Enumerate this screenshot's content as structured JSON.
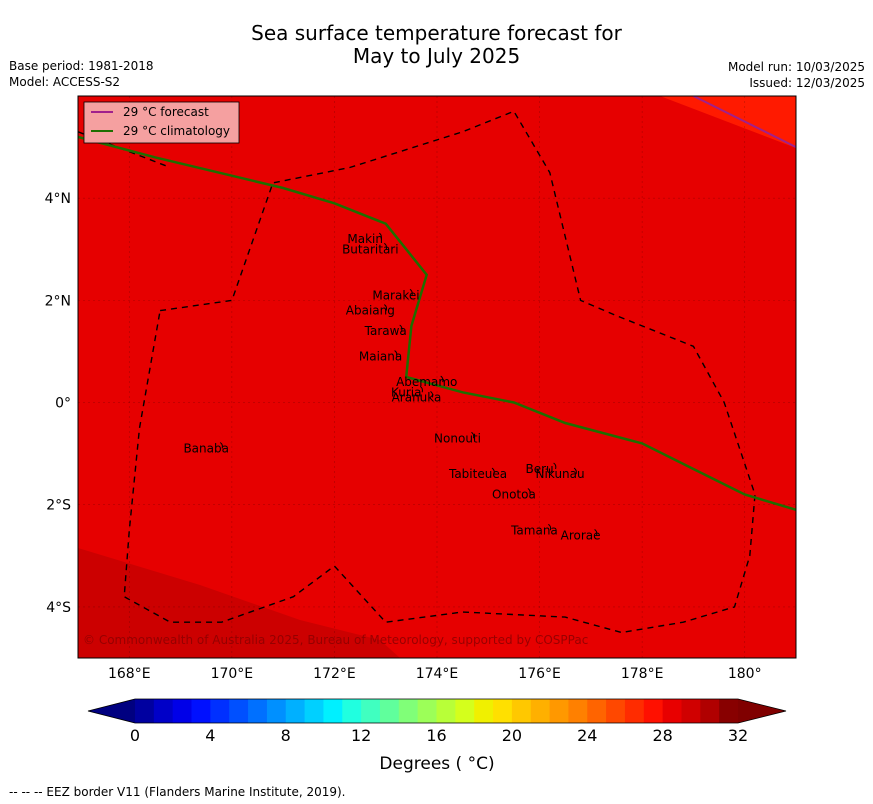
{
  "title_line1": "Sea surface temperature forecast for",
  "title_line2": "May to July 2025",
  "base_period": "Base period: 1981-2018",
  "model": "Model: ACCESS-S2",
  "model_run": "Model run: 10/03/2025",
  "issued": "Issued: 12/03/2025",
  "legend": {
    "forecast_label": "29 °C  forecast",
    "climatology_label": "29 °C  climatology",
    "forecast_color": "#a0208c",
    "climatology_color": "#1e6e00"
  },
  "lon_ticks": [
    "168°E",
    "170°E",
    "172°E",
    "174°E",
    "176°E",
    "178°E",
    "180°"
  ],
  "lat_ticks": [
    "4°N",
    "2°N",
    "0°",
    "2°S",
    "4°S"
  ],
  "places": [
    {
      "name": "Makin",
      "lon": 172.6,
      "lat": 3.2
    },
    {
      "name": "Butaritari",
      "lon": 172.7,
      "lat": 3.0
    },
    {
      "name": "Marakei",
      "lon": 173.2,
      "lat": 2.1
    },
    {
      "name": "Abaiang",
      "lon": 172.7,
      "lat": 1.8
    },
    {
      "name": "Tarawa",
      "lon": 173.0,
      "lat": 1.4
    },
    {
      "name": "Maiana",
      "lon": 172.9,
      "lat": 0.9
    },
    {
      "name": "Abemamo",
      "lon": 173.8,
      "lat": 0.4
    },
    {
      "name": "Kuria",
      "lon": 173.4,
      "lat": 0.2
    },
    {
      "name": "Aranuka",
      "lon": 173.6,
      "lat": 0.1
    },
    {
      "name": "Nonouti",
      "lon": 174.4,
      "lat": -0.7
    },
    {
      "name": "Banaba",
      "lon": 169.5,
      "lat": -0.9
    },
    {
      "name": "Beru",
      "lon": 176.0,
      "lat": -1.3
    },
    {
      "name": "Nikunau",
      "lon": 176.4,
      "lat": -1.4
    },
    {
      "name": "Tabiteuea",
      "lon": 174.8,
      "lat": -1.4
    },
    {
      "name": "Onotoa",
      "lon": 175.5,
      "lat": -1.8
    },
    {
      "name": "Tamana",
      "lon": 175.9,
      "lat": -2.5
    },
    {
      "name": "Arorae",
      "lon": 176.8,
      "lat": -2.6
    }
  ],
  "copyright": "© Commonwealth of Australia 2025, Bureau of Meteorology, supported by COSPPac",
  "colorbar": {
    "ticks": [
      "0",
      "4",
      "8",
      "12",
      "16",
      "20",
      "24",
      "28",
      "32"
    ],
    "min": 0,
    "max": 32,
    "step": 1,
    "label": "Degrees ( °C)",
    "colors": [
      "#0000a0",
      "#0000c8",
      "#0000e8",
      "#0010ff",
      "#0030ff",
      "#0050ff",
      "#0070ff",
      "#0090ff",
      "#00b0ff",
      "#00d0ff",
      "#00f0ff",
      "#20ffe0",
      "#40ffc0",
      "#60ff9c",
      "#80ff78",
      "#9cff58",
      "#b8ff38",
      "#d4ff1c",
      "#f0f000",
      "#ffe000",
      "#ffc800",
      "#ffb000",
      "#ff9800",
      "#ff8000",
      "#ff6400",
      "#ff4800",
      "#ff2c00",
      "#ff1000",
      "#e80000",
      "#d00000",
      "#b00000",
      "#880000"
    ],
    "under_color": "#000080",
    "over_color": "#800000"
  },
  "map": {
    "background_color": "#e60000",
    "lon_range": [
      167,
      181
    ],
    "lat_range": [
      -5,
      6
    ],
    "forecast_isotherm": [
      [
        179.0,
        6.0
      ],
      [
        181.0,
        5.0
      ]
    ],
    "climatology_isotherm": [
      [
        167.0,
        5.2
      ],
      [
        168.5,
        4.8
      ],
      [
        171.0,
        4.2
      ],
      [
        172.0,
        3.9
      ],
      [
        173.0,
        3.5
      ],
      [
        173.8,
        2.5
      ],
      [
        173.5,
        1.5
      ],
      [
        173.4,
        0.5
      ],
      [
        174.5,
        0.2
      ],
      [
        175.5,
        0.0
      ],
      [
        176.5,
        -0.4
      ],
      [
        178.0,
        -0.8
      ],
      [
        179.0,
        -1.3
      ],
      [
        180.0,
        -1.8
      ],
      [
        181.0,
        -2.1
      ]
    ],
    "eez_border": [
      [
        168.6,
        1.8
      ],
      [
        170.0,
        2.0
      ],
      [
        170.8,
        4.3
      ],
      [
        172.3,
        4.6
      ],
      [
        174.5,
        5.3
      ],
      [
        175.5,
        5.7
      ],
      [
        176.2,
        4.5
      ],
      [
        176.8,
        2.0
      ],
      [
        177.5,
        1.7
      ],
      [
        179.0,
        1.1
      ],
      [
        179.6,
        0.0
      ],
      [
        180.2,
        -1.8
      ],
      [
        180.1,
        -3.0
      ],
      [
        179.8,
        -4.0
      ],
      [
        178.8,
        -4.3
      ],
      [
        177.6,
        -4.5
      ],
      [
        176.5,
        -4.2
      ],
      [
        174.5,
        -4.1
      ],
      [
        173.0,
        -4.3
      ],
      [
        172.0,
        -3.2
      ],
      [
        171.2,
        -3.8
      ],
      [
        169.8,
        -4.3
      ],
      [
        168.8,
        -4.3
      ],
      [
        167.9,
        -3.8
      ],
      [
        168.0,
        -2.5
      ],
      [
        168.2,
        -0.5
      ],
      [
        168.6,
        1.8
      ]
    ],
    "eez_border_north_fragment": [
      [
        167.0,
        5.3
      ],
      [
        168.8,
        4.6
      ]
    ]
  },
  "footer": "--  --  -- EEZ border V11 (Flanders Marine Institute, 2019)."
}
